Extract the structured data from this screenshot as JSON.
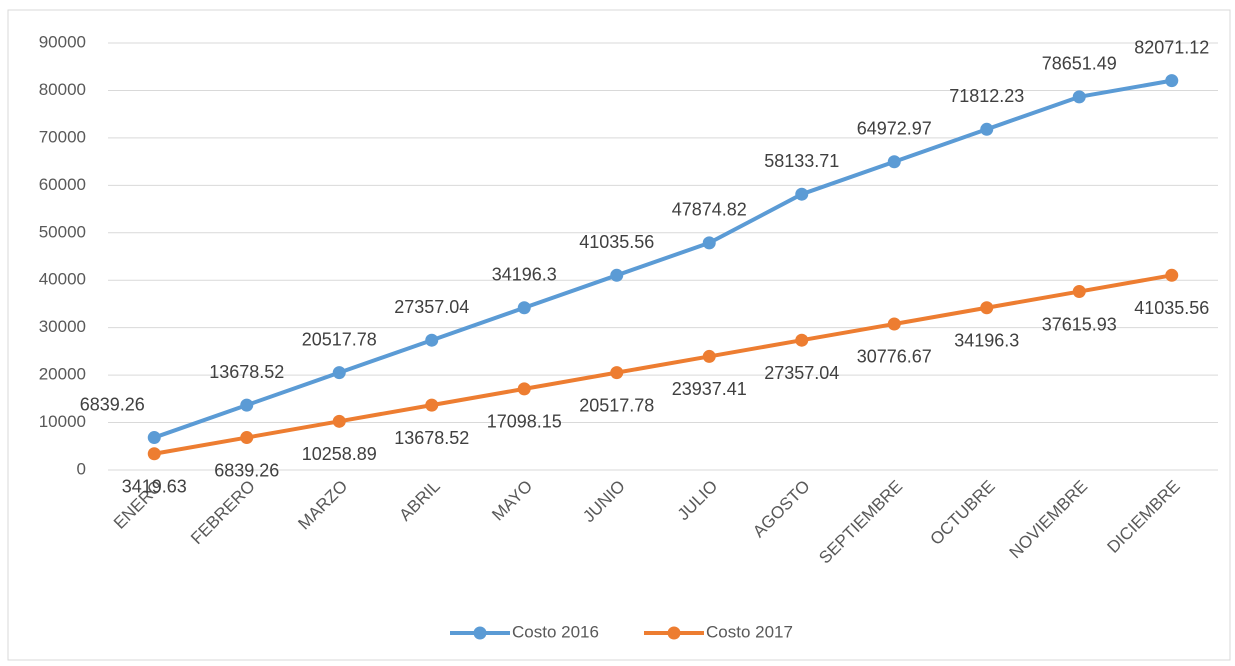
{
  "chart_data": {
    "type": "line",
    "categories": [
      "ENERO",
      "FEBRERO",
      "MARZO",
      "ABRIL",
      "MAYO",
      "JUNIO",
      "JULIO",
      "AGOSTO",
      "SEPTIEMBRE",
      "OCTUBRE",
      "NOVIEMBRE",
      "DICIEMBRE"
    ],
    "series": [
      {
        "name": "Costo 2016",
        "color": "#5b9bd5",
        "values": [
          6839.26,
          13678.52,
          20517.78,
          27357.04,
          34196.3,
          41035.56,
          47874.82,
          58133.71,
          64972.97,
          71812.23,
          78651.49,
          82071.12
        ]
      },
      {
        "name": "Costo 2017",
        "color": "#ed7d31",
        "values": [
          3419.63,
          6839.26,
          10258.89,
          13678.52,
          17098.15,
          20517.78,
          23937.41,
          27357.04,
          30776.67,
          34196.3,
          37615.93,
          41035.56
        ]
      }
    ],
    "ylim": [
      0,
      90000
    ],
    "yticks": [
      0,
      10000,
      20000,
      30000,
      40000,
      50000,
      60000,
      70000,
      80000,
      90000
    ],
    "grid": true,
    "legend": "bottom"
  }
}
